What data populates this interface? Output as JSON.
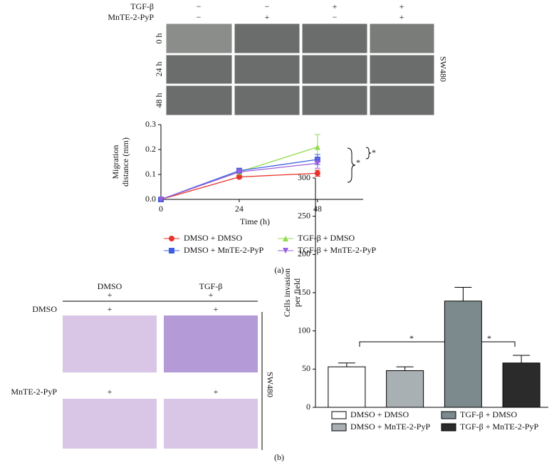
{
  "wound_panel": {
    "row_labels": [
      "TGF-β",
      "MnTE-2-PyP"
    ],
    "signs": [
      [
        "−",
        "−",
        "+",
        "+"
      ],
      [
        "−",
        "+",
        "−",
        "+"
      ]
    ],
    "times": [
      "0 h",
      "24 h",
      "48 h"
    ],
    "cell_line": "SW480"
  },
  "invasion_panel": {
    "col_labels": [
      "DMSO",
      "TGF-β"
    ],
    "col_signs": [
      "+",
      "+"
    ],
    "row_labels": [
      "DMSO",
      "MnTE-2-PyP"
    ],
    "row_signs": [
      [
        "+",
        "+"
      ],
      [
        "+",
        "+"
      ]
    ],
    "cell_line": "SW480"
  },
  "panel_labels": [
    "(a)",
    "(b)"
  ],
  "chart_data": [
    {
      "type": "line",
      "ylabel": [
        "Migration",
        "distance (mm)"
      ],
      "xlabel": "Time (h)",
      "x": [
        0,
        24,
        48
      ],
      "xlim": [
        0,
        62
      ],
      "xticks": [
        0,
        24,
        48
      ],
      "ylim": [
        0,
        0.3
      ],
      "yticks": [
        {
          "value": 0,
          "label": "0.0"
        },
        0.1,
        0.2,
        0.3
      ],
      "annotations": [
        "*",
        "*"
      ],
      "series": [
        {
          "name": "DMSO + DMSO",
          "color": "#e8332a",
          "marker": "circle",
          "values": [
            0,
            0.09,
            0.105
          ],
          "errors": [
            0,
            0.005,
            0.012
          ]
        },
        {
          "name": "TGF-β + DMSO",
          "color": "#8fdc4a",
          "marker": "triangle",
          "values": [
            0,
            0.11,
            0.21
          ],
          "errors": [
            0,
            0.005,
            0.05
          ]
        },
        {
          "name": "DMSO + MnTE-2-PyP",
          "color": "#3b5fe0",
          "marker": "square",
          "values": [
            0,
            0.115,
            0.16
          ],
          "errors": [
            0,
            0.01,
            0.02
          ]
        },
        {
          "name": "TGF-β + MnTE-2-PyP",
          "color": "#9a5fe0",
          "marker": "triangle-down",
          "values": [
            0,
            0.11,
            0.145
          ],
          "errors": [
            0,
            0.005,
            0.02
          ]
        }
      ]
    },
    {
      "type": "bar",
      "ylabel": [
        "Cells invasion",
        "per field"
      ],
      "categories": [
        "DMSO + DMSO",
        "DMSO + MnTE-2-PyP",
        "TGF-β + DMSO",
        "TGF-β + MnTE-2-PyP"
      ],
      "colors": [
        "#ffffff",
        "#a9b0b4",
        "#7c8a8e",
        "#2b2b2b"
      ],
      "values": [
        53,
        48,
        139,
        58
      ],
      "errors": [
        5,
        5,
        18,
        10
      ],
      "ylim": [
        0,
        300
      ],
      "yticks": [
        0,
        50,
        100,
        150,
        200,
        250,
        300
      ],
      "annotations": [
        "*",
        "*"
      ]
    }
  ]
}
